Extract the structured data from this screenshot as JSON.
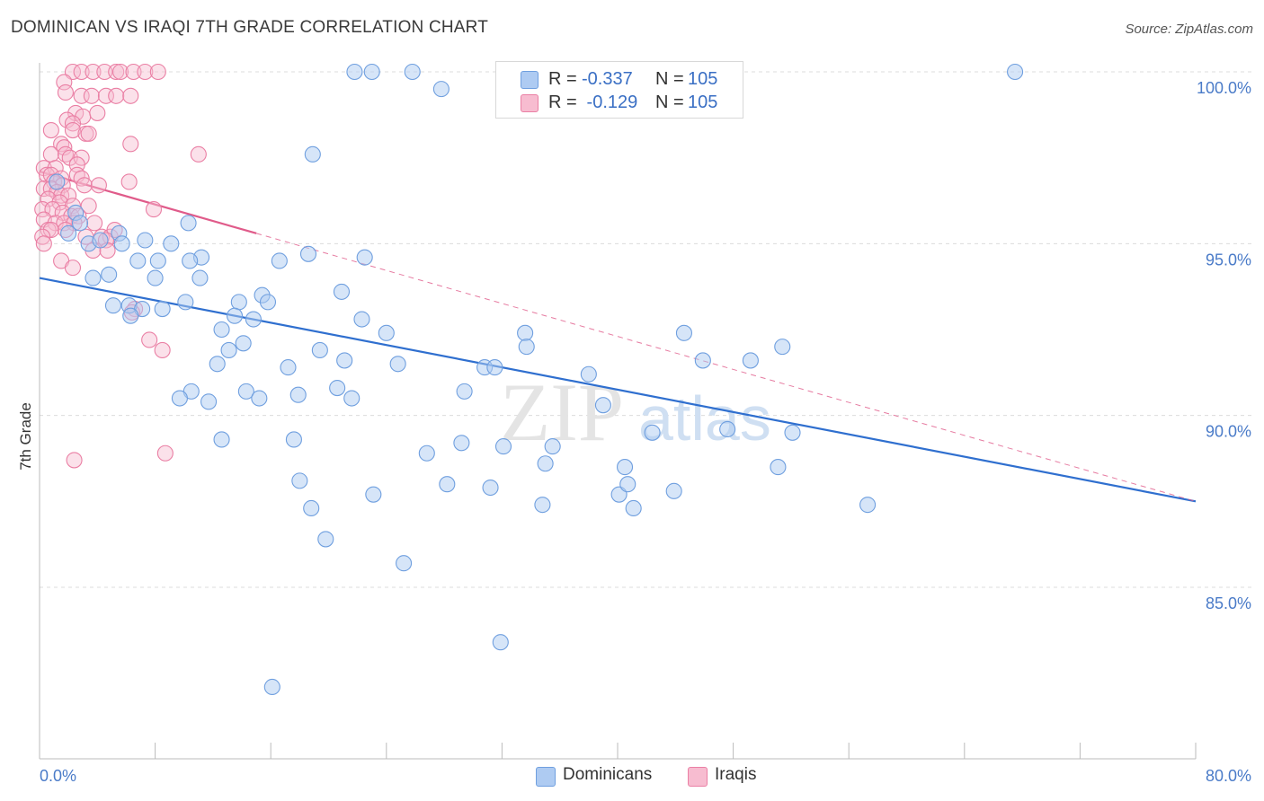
{
  "header": {
    "title": "DOMINICAN VS IRAQI 7TH GRADE CORRELATION CHART",
    "source": "Source: ZipAtlas.com"
  },
  "legend": {
    "rows": [
      {
        "r_label": "R =",
        "r_value": "-0.337",
        "n_label": "N =",
        "n_value": "105",
        "color": "#7aaae8"
      },
      {
        "r_label": "R =",
        "r_value": " -0.129",
        "n_label": "N =",
        "n_value": "105",
        "color": "#f09ab8"
      }
    ]
  },
  "bottom_legend": {
    "items": [
      {
        "label": "Dominicans",
        "color": "#7aaae8"
      },
      {
        "label": "Iraqis",
        "color": "#f09ab8"
      }
    ]
  },
  "colors": {
    "blue_fill": "#aecbf2",
    "blue_stroke": "#6f9fdf",
    "blue_line": "#2f6fcf",
    "pink_fill": "#f7bcd0",
    "pink_stroke": "#ea7fa4",
    "pink_line": "#e05b8a",
    "grid": "#dcdcdc",
    "tick_text": "#4a7bc8"
  },
  "chart_data": {
    "type": "scatter",
    "title": "DOMINICAN VS IRAQI 7TH GRADE CORRELATION CHART",
    "xlabel": "",
    "ylabel": "7th Grade",
    "xlim": [
      0,
      80
    ],
    "ylim": [
      80.0,
      100.5
    ],
    "x_tick_labels": [
      "0.0%",
      "80.0%"
    ],
    "y_ticks": [
      85,
      90,
      95,
      100
    ],
    "y_tick_labels": [
      "85.0%",
      "90.0%",
      "95.0%",
      "100.0%"
    ],
    "grid": true,
    "legend_position": "top-center",
    "watermark": "ZIPatlas",
    "series": [
      {
        "name": "Dominicans",
        "r": -0.337,
        "n": 105,
        "trend": {
          "x": [
            0,
            80
          ],
          "y": [
            94.0,
            87.5
          ]
        },
        "points": [
          [
            21.8,
            100
          ],
          [
            23,
            100
          ],
          [
            25.8,
            100
          ],
          [
            27.8,
            99.5
          ],
          [
            32.4,
            100
          ],
          [
            45.2,
            100
          ],
          [
            67.5,
            100
          ],
          [
            18.9,
            97.6
          ],
          [
            1.2,
            96.8
          ],
          [
            2.5,
            95.9
          ],
          [
            2.8,
            95.6
          ],
          [
            2.0,
            95.3
          ],
          [
            3.4,
            95.0
          ],
          [
            5.5,
            95.3
          ],
          [
            4.2,
            95.1
          ],
          [
            5.7,
            95.0
          ],
          [
            9.1,
            95.0
          ],
          [
            7.3,
            95.1
          ],
          [
            10.3,
            95.6
          ],
          [
            11.2,
            94.6
          ],
          [
            10.4,
            94.5
          ],
          [
            8.2,
            94.5
          ],
          [
            6.8,
            94.5
          ],
          [
            18.6,
            94.7
          ],
          [
            22.5,
            94.6
          ],
          [
            16.6,
            94.5
          ],
          [
            8.0,
            94.0
          ],
          [
            4.8,
            94.1
          ],
          [
            3.7,
            94.0
          ],
          [
            11.1,
            94.0
          ],
          [
            5.1,
            93.2
          ],
          [
            6.2,
            93.2
          ],
          [
            7.1,
            93.1
          ],
          [
            8.5,
            93.1
          ],
          [
            10.1,
            93.3
          ],
          [
            13.8,
            93.3
          ],
          [
            15.4,
            93.5
          ],
          [
            15.8,
            93.3
          ],
          [
            20.9,
            93.6
          ],
          [
            6.3,
            92.9
          ],
          [
            13.5,
            92.9
          ],
          [
            14.8,
            92.8
          ],
          [
            12.6,
            92.5
          ],
          [
            22.3,
            92.8
          ],
          [
            24.0,
            92.4
          ],
          [
            33.6,
            92.4
          ],
          [
            33.7,
            92.0
          ],
          [
            44.6,
            92.4
          ],
          [
            14.1,
            92.1
          ],
          [
            13.1,
            91.9
          ],
          [
            19.4,
            91.9
          ],
          [
            21.1,
            91.6
          ],
          [
            12.3,
            91.5
          ],
          [
            24.8,
            91.5
          ],
          [
            17.2,
            91.4
          ],
          [
            30.8,
            91.4
          ],
          [
            31.5,
            91.4
          ],
          [
            45.9,
            91.6
          ],
          [
            49.2,
            91.6
          ],
          [
            51.4,
            92.0
          ],
          [
            38.0,
            91.2
          ],
          [
            10.5,
            90.7
          ],
          [
            9.7,
            90.5
          ],
          [
            11.7,
            90.4
          ],
          [
            14.3,
            90.7
          ],
          [
            15.2,
            90.5
          ],
          [
            17.9,
            90.6
          ],
          [
            20.6,
            90.8
          ],
          [
            21.6,
            90.5
          ],
          [
            29.4,
            90.7
          ],
          [
            39.0,
            90.3
          ],
          [
            12.6,
            89.3
          ],
          [
            17.6,
            89.3
          ],
          [
            29.2,
            89.2
          ],
          [
            32.1,
            89.1
          ],
          [
            35.5,
            89.1
          ],
          [
            42.4,
            89.5
          ],
          [
            47.6,
            89.6
          ],
          [
            52.1,
            89.5
          ],
          [
            26.8,
            88.9
          ],
          [
            35.0,
            88.6
          ],
          [
            40.5,
            88.5
          ],
          [
            51.1,
            88.5
          ],
          [
            18.0,
            88.1
          ],
          [
            28.2,
            88.0
          ],
          [
            31.2,
            87.9
          ],
          [
            40.1,
            87.7
          ],
          [
            40.7,
            88.0
          ],
          [
            43.9,
            87.8
          ],
          [
            23.1,
            87.7
          ],
          [
            18.8,
            87.3
          ],
          [
            34.8,
            87.4
          ],
          [
            41.1,
            87.3
          ],
          [
            57.3,
            87.4
          ],
          [
            19.8,
            86.4
          ],
          [
            25.2,
            85.7
          ],
          [
            31.9,
            83.4
          ],
          [
            16.1,
            82.1
          ]
        ]
      },
      {
        "name": "Iraqis",
        "r": -0.129,
        "n": 105,
        "trend": {
          "x": [
            0,
            15
          ],
          "y": [
            97.1,
            95.3
          ]
        },
        "trend_extension": {
          "x": [
            15,
            80
          ],
          "y": [
            95.3,
            87.5
          ]
        },
        "points": [
          [
            2.3,
            100
          ],
          [
            2.9,
            100
          ],
          [
            3.7,
            100
          ],
          [
            4.5,
            100
          ],
          [
            5.3,
            100
          ],
          [
            5.6,
            100
          ],
          [
            6.5,
            100
          ],
          [
            7.3,
            100
          ],
          [
            8.2,
            100
          ],
          [
            1.7,
            99.7
          ],
          [
            1.8,
            99.4
          ],
          [
            2.9,
            99.3
          ],
          [
            3.6,
            99.3
          ],
          [
            4.6,
            99.3
          ],
          [
            5.3,
            99.3
          ],
          [
            6.3,
            99.3
          ],
          [
            2.5,
            98.8
          ],
          [
            3.0,
            98.7
          ],
          [
            4.0,
            98.8
          ],
          [
            1.9,
            98.6
          ],
          [
            2.3,
            98.5
          ],
          [
            2.3,
            98.3
          ],
          [
            0.8,
            98.3
          ],
          [
            3.2,
            98.2
          ],
          [
            3.4,
            98.2
          ],
          [
            6.3,
            97.9
          ],
          [
            1.5,
            97.9
          ],
          [
            1.7,
            97.8
          ],
          [
            0.8,
            97.6
          ],
          [
            1.8,
            97.6
          ],
          [
            2.1,
            97.5
          ],
          [
            2.9,
            97.5
          ],
          [
            11.0,
            97.6
          ],
          [
            0.3,
            97.2
          ],
          [
            1.1,
            97.2
          ],
          [
            2.6,
            97.3
          ],
          [
            2.6,
            97.0
          ],
          [
            0.5,
            97.0
          ],
          [
            0.8,
            97.0
          ],
          [
            1.5,
            96.9
          ],
          [
            2.9,
            96.9
          ],
          [
            1.0,
            96.8
          ],
          [
            1.6,
            96.7
          ],
          [
            3.1,
            96.7
          ],
          [
            4.1,
            96.7
          ],
          [
            6.2,
            96.8
          ],
          [
            0.3,
            96.6
          ],
          [
            0.8,
            96.6
          ],
          [
            1.2,
            96.5
          ],
          [
            1.5,
            96.4
          ],
          [
            2.0,
            96.4
          ],
          [
            0.6,
            96.3
          ],
          [
            1.4,
            96.2
          ],
          [
            2.3,
            96.1
          ],
          [
            3.4,
            96.1
          ],
          [
            0.2,
            96.0
          ],
          [
            0.9,
            96.0
          ],
          [
            1.6,
            95.9
          ],
          [
            2.2,
            95.8
          ],
          [
            2.7,
            95.8
          ],
          [
            7.9,
            96.0
          ],
          [
            0.3,
            95.7
          ],
          [
            1.1,
            95.6
          ],
          [
            1.7,
            95.6
          ],
          [
            2.4,
            95.6
          ],
          [
            3.8,
            95.6
          ],
          [
            0.6,
            95.4
          ],
          [
            0.8,
            95.4
          ],
          [
            1.8,
            95.4
          ],
          [
            3.2,
            95.2
          ],
          [
            4.3,
            95.2
          ],
          [
            4.9,
            95.2
          ],
          [
            5.2,
            95.4
          ],
          [
            0.2,
            95.2
          ],
          [
            0.3,
            95.0
          ],
          [
            4.6,
            95.1
          ],
          [
            3.7,
            94.8
          ],
          [
            4.7,
            94.8
          ],
          [
            1.5,
            94.5
          ],
          [
            2.3,
            94.3
          ],
          [
            6.6,
            93.1
          ],
          [
            6.4,
            93.0
          ],
          [
            7.6,
            92.2
          ],
          [
            8.5,
            91.9
          ],
          [
            2.4,
            88.7
          ],
          [
            8.7,
            88.9
          ]
        ]
      }
    ]
  }
}
